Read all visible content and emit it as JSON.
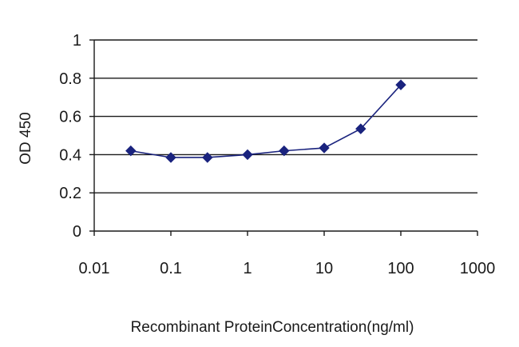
{
  "chart_data": {
    "type": "line",
    "title": "",
    "xlabel": "Recombinant ProteinConcentration(ng/ml)",
    "ylabel": "OD 450",
    "x_scale": "log",
    "xlim": [
      0.01,
      1000
    ],
    "ylim": [
      0,
      1
    ],
    "x_ticks": [
      0.01,
      0.1,
      1,
      10,
      100,
      1000
    ],
    "x_tick_labels": [
      "0.01",
      "0.1",
      "1",
      "10",
      "100",
      "1000"
    ],
    "y_ticks": [
      0,
      0.2,
      0.4,
      0.6,
      0.8,
      1
    ],
    "y_tick_labels": [
      "0",
      "0.2",
      "0.4",
      "0.6",
      "0.8",
      "1"
    ],
    "grid": "horizontal",
    "legend": "none",
    "series": [
      {
        "color": "#1a237e",
        "marker": "diamond",
        "x": [
          0.03,
          0.1,
          0.3,
          1,
          3,
          10,
          30,
          100
        ],
        "y": [
          0.42,
          0.385,
          0.385,
          0.4,
          0.42,
          0.435,
          0.535,
          0.765
        ]
      }
    ]
  }
}
